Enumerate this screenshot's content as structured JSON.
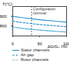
{
  "chart_data": {
    "type": "line",
    "x_label": "ΔG/G₀ (%)",
    "y_label": "T(°C)",
    "x": [
      0,
      20,
      40,
      60,
      80,
      100
    ],
    "series": [
      {
        "name": "Stator channels",
        "color": "#1f8fd0",
        "line_style": "solid",
        "values": [
          900,
          885,
          872,
          860,
          850,
          840
        ]
      },
      {
        "name": "Air gap",
        "color": "#1f8fd0",
        "line_style": "dashed",
        "values": [
          850,
          835,
          822,
          812,
          803,
          795
        ]
      },
      {
        "name": "Rotor channels",
        "color": "#1f8fd0",
        "line_style": "dotted",
        "values": [
          790,
          776,
          765,
          755,
          747,
          740
        ]
      }
    ],
    "annotations": [
      {
        "text": "Configuration nominal",
        "x": 35
      }
    ],
    "xlim": [
      0,
      100
    ],
    "xticks": [
      0,
      50,
      100
    ],
    "ylim": [
      700,
      1000
    ],
    "yticks": [
      800,
      900
    ],
    "legend": "bottom"
  }
}
